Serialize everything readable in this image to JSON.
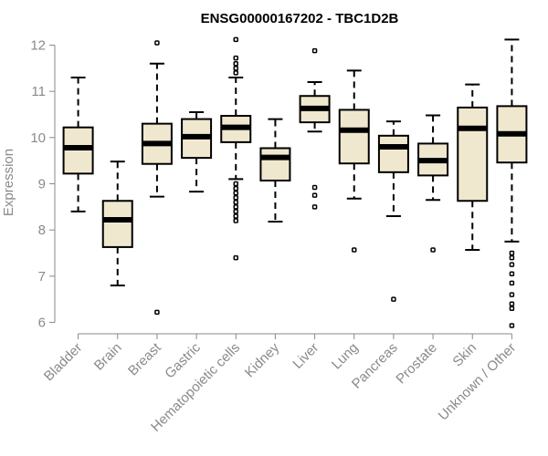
{
  "chart_data": {
    "type": "boxplot",
    "title": "ENSG00000167202 - TBC1D2B",
    "xlabel": "",
    "ylabel": "Expression",
    "ylim": [
      5.85,
      12.2
    ],
    "yticks": [
      6,
      7,
      8,
      9,
      10,
      11,
      12
    ],
    "grid": false,
    "legend": "none",
    "box_fill": "#efe8cf",
    "median_color": "#000000",
    "categories": [
      "Bladder",
      "Brain",
      "Breast",
      "Gastric",
      "Hematopoietic cells",
      "Kidney",
      "Liver",
      "Lung",
      "Pancreas",
      "Prostate",
      "Skin",
      "Unknown / Other"
    ],
    "boxes": [
      {
        "category": "Bladder",
        "whisker_low": 8.4,
        "q1": 9.22,
        "median": 9.78,
        "q3": 10.22,
        "whisker_high": 11.3,
        "outliers": []
      },
      {
        "category": "Brain",
        "whisker_low": 6.8,
        "q1": 7.63,
        "median": 8.22,
        "q3": 8.63,
        "whisker_high": 9.48,
        "outliers": []
      },
      {
        "category": "Breast",
        "whisker_low": 8.72,
        "q1": 9.43,
        "median": 9.87,
        "q3": 10.3,
        "whisker_high": 11.6,
        "outliers": [
          6.22,
          12.05
        ]
      },
      {
        "category": "Gastric",
        "whisker_low": 8.83,
        "q1": 9.56,
        "median": 10.02,
        "q3": 10.4,
        "whisker_high": 10.55,
        "outliers": []
      },
      {
        "category": "Hematopoietic cells",
        "whisker_low": 9.1,
        "q1": 9.9,
        "median": 10.22,
        "q3": 10.47,
        "whisker_high": 11.3,
        "outliers": [
          7.4,
          8.2,
          8.3,
          8.4,
          8.5,
          8.6,
          8.7,
          8.8,
          8.9,
          9.0,
          11.4,
          11.5,
          11.6,
          11.72,
          12.12
        ]
      },
      {
        "category": "Kidney",
        "whisker_low": 8.18,
        "q1": 9.07,
        "median": 9.57,
        "q3": 9.77,
        "whisker_high": 10.4,
        "outliers": []
      },
      {
        "category": "Liver",
        "whisker_low": 10.13,
        "q1": 10.33,
        "median": 10.63,
        "q3": 10.9,
        "whisker_high": 11.2,
        "outliers": [
          8.5,
          8.75,
          8.92,
          11.88
        ]
      },
      {
        "category": "Lung",
        "whisker_low": 8.68,
        "q1": 9.44,
        "median": 10.16,
        "q3": 10.6,
        "whisker_high": 11.45,
        "outliers": [
          7.57
        ]
      },
      {
        "category": "Pancreas",
        "whisker_low": 8.3,
        "q1": 9.25,
        "median": 9.8,
        "q3": 10.04,
        "whisker_high": 10.35,
        "outliers": [
          6.5
        ]
      },
      {
        "category": "Prostate",
        "whisker_low": 8.65,
        "q1": 9.18,
        "median": 9.5,
        "q3": 9.87,
        "whisker_high": 10.48,
        "outliers": [
          7.57
        ]
      },
      {
        "category": "Skin",
        "whisker_low": 7.57,
        "q1": 8.63,
        "median": 10.2,
        "q3": 10.65,
        "whisker_high": 11.15,
        "outliers": []
      },
      {
        "category": "Unknown / Other",
        "whisker_low": 7.75,
        "q1": 9.46,
        "median": 10.08,
        "q3": 10.68,
        "whisker_high": 12.12,
        "outliers": [
          5.93,
          6.3,
          6.4,
          6.6,
          6.85,
          7.05,
          7.25,
          7.4,
          7.5
        ]
      }
    ]
  }
}
